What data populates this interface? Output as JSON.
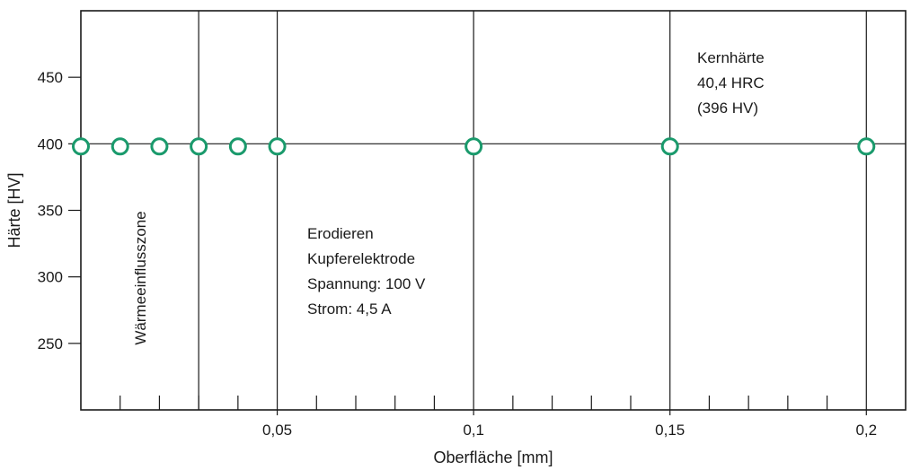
{
  "chart_data": {
    "type": "scatter",
    "xlabel": "Oberfläche [mm]",
    "ylabel": "Härte [HV]",
    "xlim": [
      0,
      0.21
    ],
    "ylim": [
      200,
      500
    ],
    "x_ticks": [
      {
        "value": 0.05,
        "label": "0,05"
      },
      {
        "value": 0.1,
        "label": "0,1"
      },
      {
        "value": 0.15,
        "label": "0,15"
      },
      {
        "value": 0.2,
        "label": "0,2"
      }
    ],
    "x_minor_ticks": [
      0.01,
      0.02,
      0.03,
      0.04,
      0.06,
      0.07,
      0.08,
      0.09,
      0.11,
      0.12,
      0.13,
      0.14,
      0.16,
      0.17,
      0.18,
      0.19
    ],
    "y_ticks": [
      {
        "value": 250,
        "label": "250"
      },
      {
        "value": 300,
        "label": "300"
      },
      {
        "value": 350,
        "label": "350"
      },
      {
        "value": 400,
        "label": "400"
      },
      {
        "value": 450,
        "label": "450"
      }
    ],
    "vertical_lines": [
      0.03,
      0.05,
      0.1,
      0.15,
      0.2
    ],
    "reference_line": 400,
    "series": [
      {
        "x": [
          0,
          0.01,
          0.02,
          0.03,
          0.04,
          0.05,
          0.1,
          0.15,
          0.2
        ],
        "y": [
          398,
          398,
          398,
          398,
          398,
          398,
          398,
          398,
          398
        ]
      }
    ],
    "annotations": {
      "zone": "Wärmeeinflusszone",
      "process": [
        "Erodieren",
        "Kupferelektrode",
        "Spannung: 100 V",
        "Strom: 4,5 A"
      ],
      "core": [
        "Kernhärte",
        "40,4 HRC",
        "(396 HV)"
      ]
    },
    "colors": {
      "marker": "#1a9a6c",
      "axis": "#1a1a1a",
      "background": "#ffffff"
    }
  }
}
